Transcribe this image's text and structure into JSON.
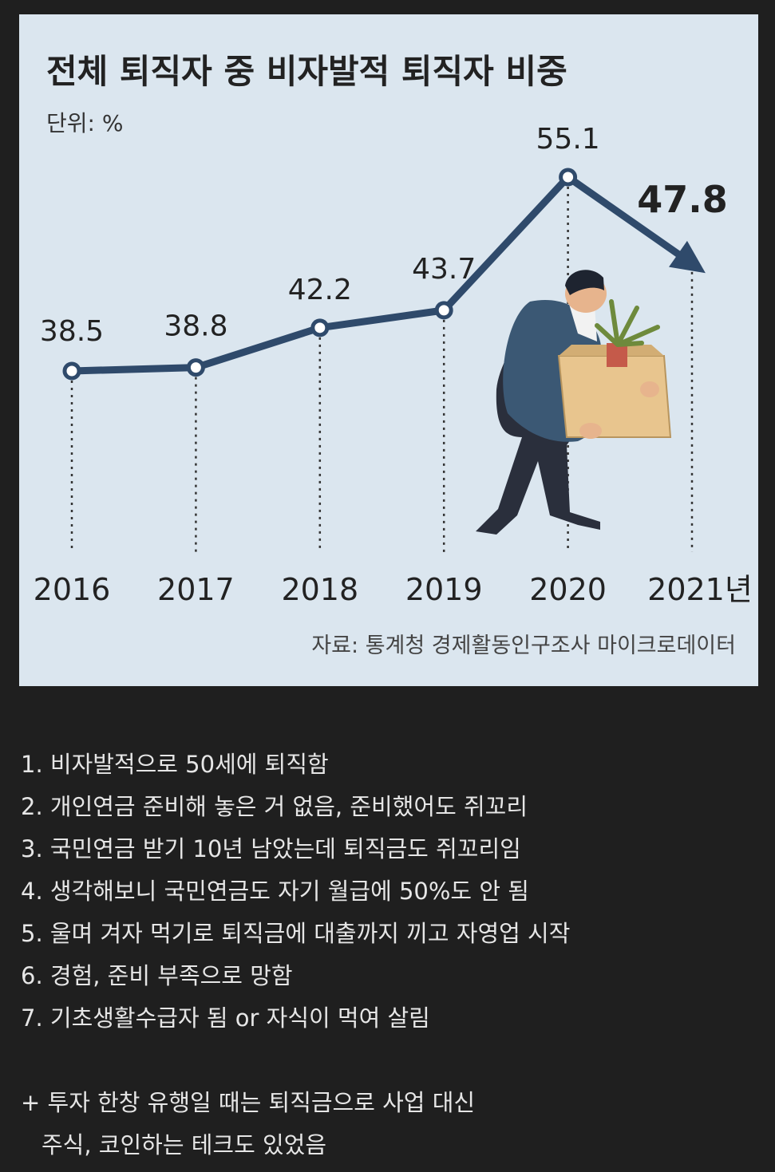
{
  "chart_data": {
    "type": "line",
    "title": "전체 퇴직자 중 비자발적 퇴직자 비중",
    "unit_label": "단위: %",
    "categories": [
      "2016",
      "2017",
      "2018",
      "2019",
      "2020",
      "2021년"
    ],
    "values": [
      38.5,
      38.8,
      42.2,
      43.7,
      55.1,
      47.8
    ],
    "value_labels": [
      "38.5",
      "38.8",
      "42.2",
      "43.7",
      "55.1",
      "47.8"
    ],
    "source": "자료: 통계청 경제활동인구조사 마이크로데이터",
    "colors": {
      "background": "#dbe6ef",
      "line": "#2f4a6b"
    }
  },
  "notes": [
    "1. 비자발적으로 50세에 퇴직함",
    "2. 개인연금 준비해 놓은 거 없음, 준비했어도 쥐꼬리",
    "3. 국민연금 받기 10년 남았는데 퇴직금도 쥐꼬리임",
    "4. 생각해보니 국민연금도 자기 월급에 50%도 안 됨",
    "5. 울며 겨자 먹기로 퇴직금에 대출까지 끼고 자영업 시작",
    "6. 경험, 준비 부족으로 망함",
    "7. 기초생활수급자 됨 or 자식이 먹여 살림"
  ],
  "extra_note": {
    "line1": "+ 투자 한창 유행일 때는 퇴직금으로 사업 대신",
    "line2": "주식, 코인하는 테크도 있었음"
  }
}
